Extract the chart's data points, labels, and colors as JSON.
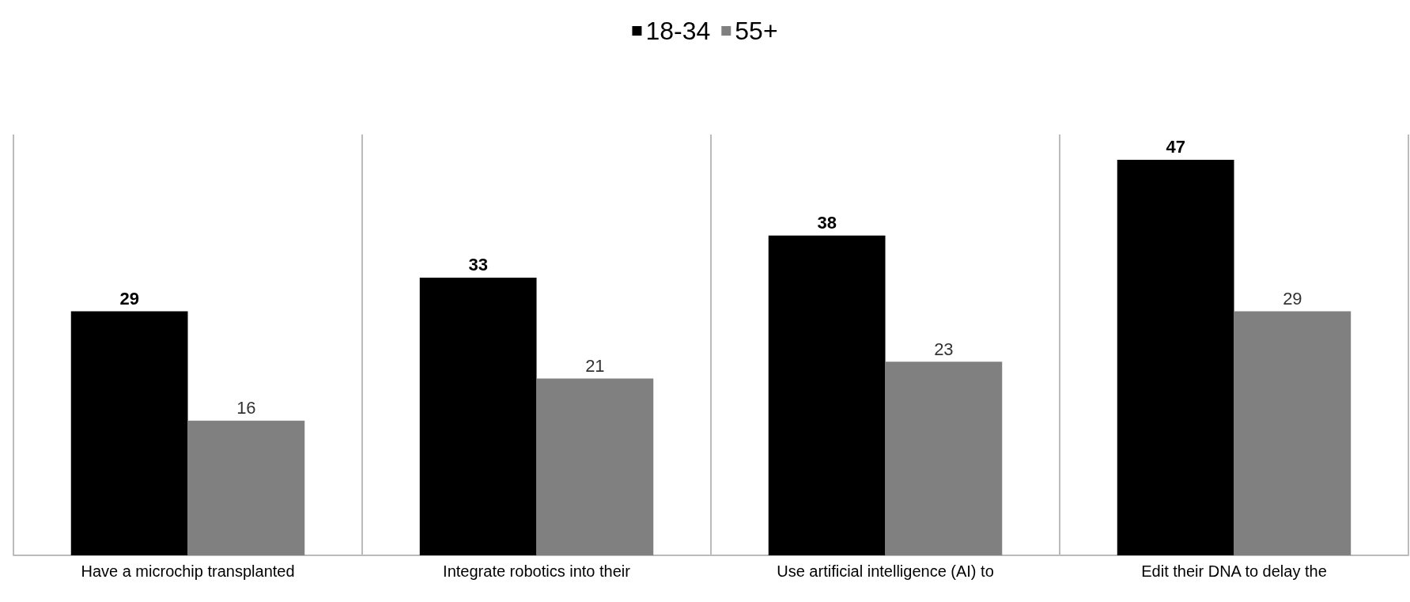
{
  "chart_data": {
    "type": "bar",
    "categories": [
      "Have a microchip transplanted",
      "Integrate robotics into their",
      "Use artificial intelligence (AI) to",
      "Edit their DNA to delay the"
    ],
    "series": [
      {
        "name": "18-34",
        "color": "#000000",
        "values": [
          29,
          33,
          38,
          47
        ]
      },
      {
        "name": "55+",
        "color": "#808080",
        "values": [
          16,
          21,
          23,
          29
        ]
      }
    ],
    "data_labels": true,
    "grid": "x",
    "legend": "top"
  }
}
